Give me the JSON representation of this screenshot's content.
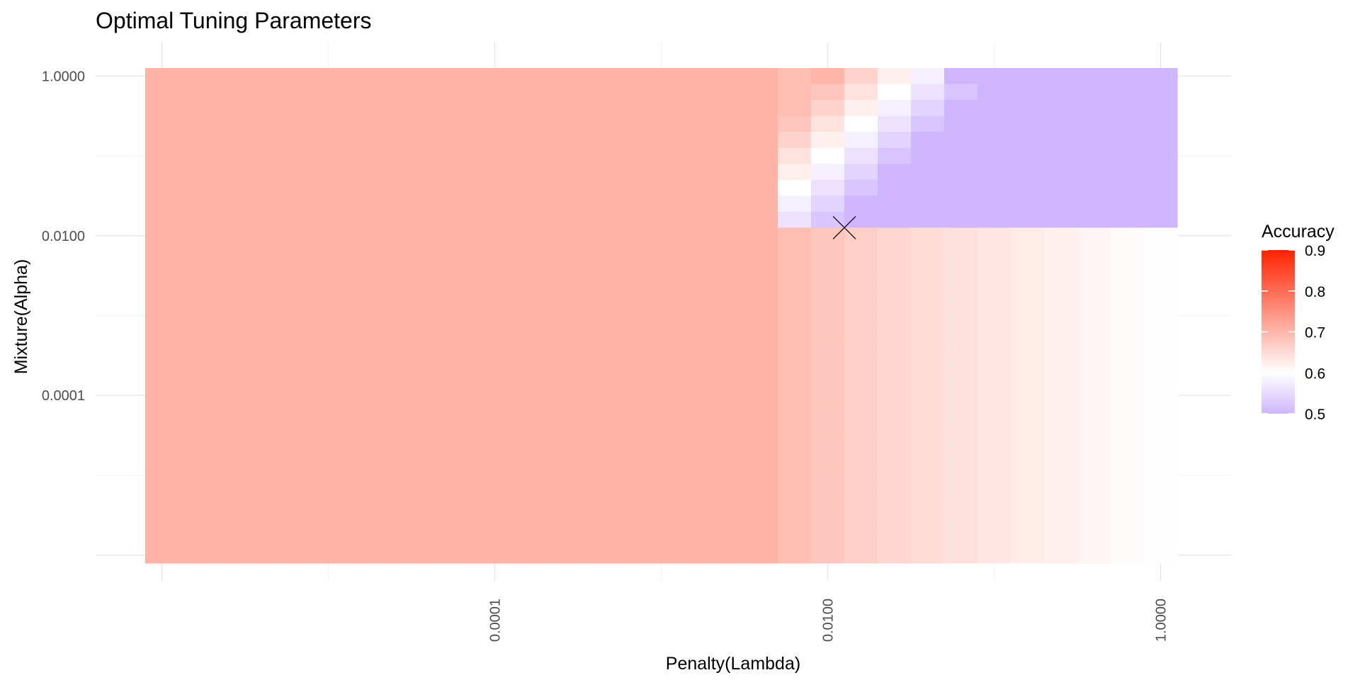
{
  "chart_data": {
    "type": "heatmap",
    "title": "Optimal Tuning Parameters",
    "xlabel": "Penalty(Lambda)",
    "ylabel": "Mixture(Alpha)",
    "x_scale": "log10",
    "y_scale": "log10",
    "xlim": [
      1e-06,
      1
    ],
    "ylim": [
      1e-06,
      1
    ],
    "x_ticks": [
      {
        "value": 0.0001,
        "label": "0.0001"
      },
      {
        "value": 0.01,
        "label": "0.0100"
      },
      {
        "value": 1,
        "label": "1.0000"
      }
    ],
    "y_ticks": [
      {
        "value": 1,
        "label": "1.0000"
      },
      {
        "value": 0.01,
        "label": "0.0100"
      },
      {
        "value": 0.0001,
        "label": "0.0001"
      }
    ],
    "grid": true,
    "x_log10_cells": [
      -6,
      -5.8,
      -5.6,
      -5.4,
      -5.2,
      -5,
      -4.8,
      -4.6,
      -4.4,
      -4.2,
      -4,
      -3.8,
      -3.6,
      -3.4,
      -3.2,
      -3,
      -2.8,
      -2.6,
      -2.4,
      -2.2,
      -2,
      -1.8,
      -1.6,
      -1.4,
      -1.2,
      -1,
      -0.8,
      -0.6,
      -0.4,
      -0.2,
      0
    ],
    "y_log10_cells": [
      0,
      -0.2,
      -0.4,
      -0.6,
      -0.8,
      -1,
      -1.2,
      -1.4,
      -1.6,
      -1.8,
      -2,
      -2.2,
      -2.4,
      -2.6,
      -2.8,
      -3,
      -3.2,
      -3.4,
      -3.6,
      -3.8,
      -4,
      -4.2,
      -4.4,
      -4.6,
      -4.8,
      -5,
      -5.2,
      -5.4,
      -5.6,
      -5.8,
      -6
    ],
    "accuracy_grid_note": "rows follow y_log10_cells (top to bottom), columns follow x_log10_cells (left to right)",
    "accuracy_grid": [],
    "best": {
      "penalty": 0.0126,
      "mixture": 0.0126,
      "label": "X"
    },
    "legend": {
      "title": "Accuracy",
      "position": "right",
      "ticks": [
        0.9,
        0.8,
        0.7,
        0.6,
        0.5
      ],
      "tick_labels": [
        "0.9",
        "0.8",
        "0.7",
        "0.6",
        "0.5"
      ],
      "colors": {
        "low": "#cfb6ff",
        "mid": "#ffffff",
        "high": "#ff2200"
      },
      "midpoint": 0.6,
      "range": [
        0.5,
        0.9
      ]
    }
  }
}
